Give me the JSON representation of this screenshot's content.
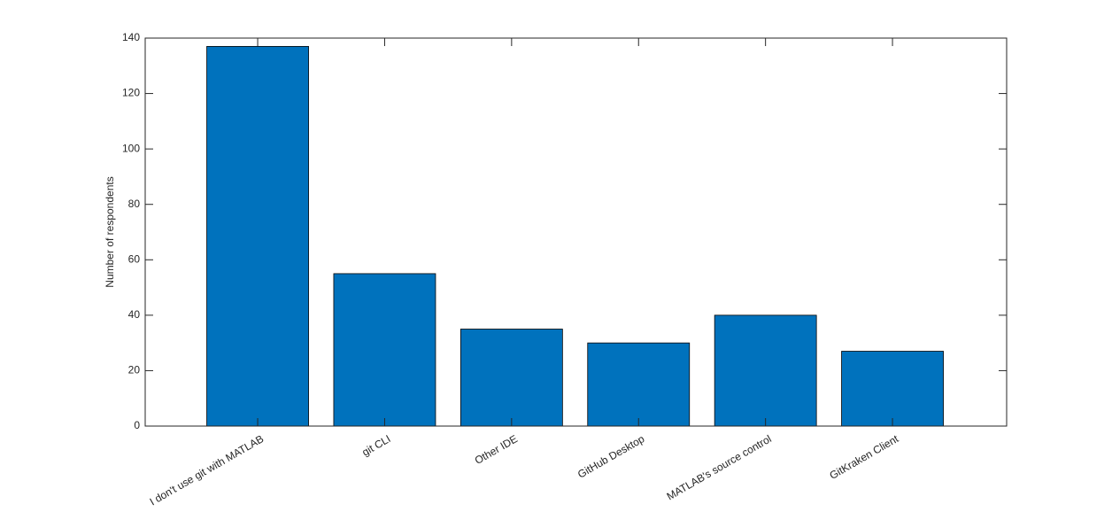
{
  "chart_data": {
    "type": "bar",
    "ylabel": "Number of respondents",
    "categories": [
      "I don't use git with MATLAB",
      "git CLI",
      "Other IDE",
      "GitHub Desktop",
      "MATLAB's source control",
      "GitKraken Client"
    ],
    "values": [
      137,
      55,
      35,
      30,
      40,
      27
    ],
    "color": "#0072bd",
    "ylim": [
      0,
      140
    ],
    "yticks": [
      0,
      20,
      40,
      60,
      80,
      100,
      120,
      140
    ],
    "grid": false
  }
}
